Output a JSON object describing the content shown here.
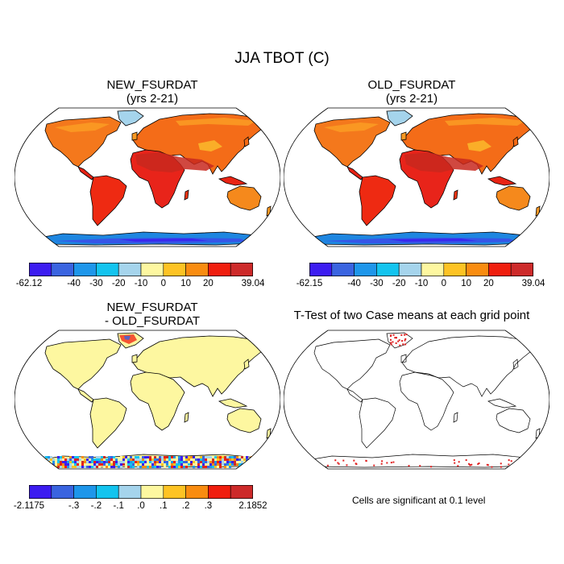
{
  "figure": {
    "title": "JJA TBOT (C)"
  },
  "panels": {
    "new": {
      "title_line1": "NEW_FSURDAT",
      "title_line2": "(yrs 2-21)"
    },
    "old": {
      "title_line1": "OLD_FSURDAT",
      "title_line2": "(yrs 2-21)"
    },
    "diff": {
      "title_line1": "NEW_FSURDAT",
      "title_line2": "- OLD_FSURDAT"
    },
    "ttest": {
      "title": "T-Test of two Case means at each grid point",
      "note": "Cells are significant at 0.1 level"
    }
  },
  "colorbars": {
    "colors": [
      "#3c1cf0",
      "#3a64e0",
      "#1e96ea",
      "#13c4ef",
      "#a5d4ec",
      "#fdf7a0",
      "#fdc324",
      "#f98c10",
      "#f01e0e",
      "#cd2a2a"
    ],
    "new": {
      "labels": [
        "-62.12",
        "-40",
        "-30",
        "-20",
        "-10",
        "0",
        "10",
        "20",
        "39.04"
      ]
    },
    "old": {
      "labels": [
        "-62.15",
        "-40",
        "-30",
        "-20",
        "-10",
        "0",
        "10",
        "20",
        "39.04"
      ]
    },
    "diff": {
      "labels": [
        "-2.1175",
        "-.3",
        "-.2",
        "-.1",
        ".0",
        ".1",
        ".2",
        ".3",
        "2.1852"
      ]
    }
  }
}
